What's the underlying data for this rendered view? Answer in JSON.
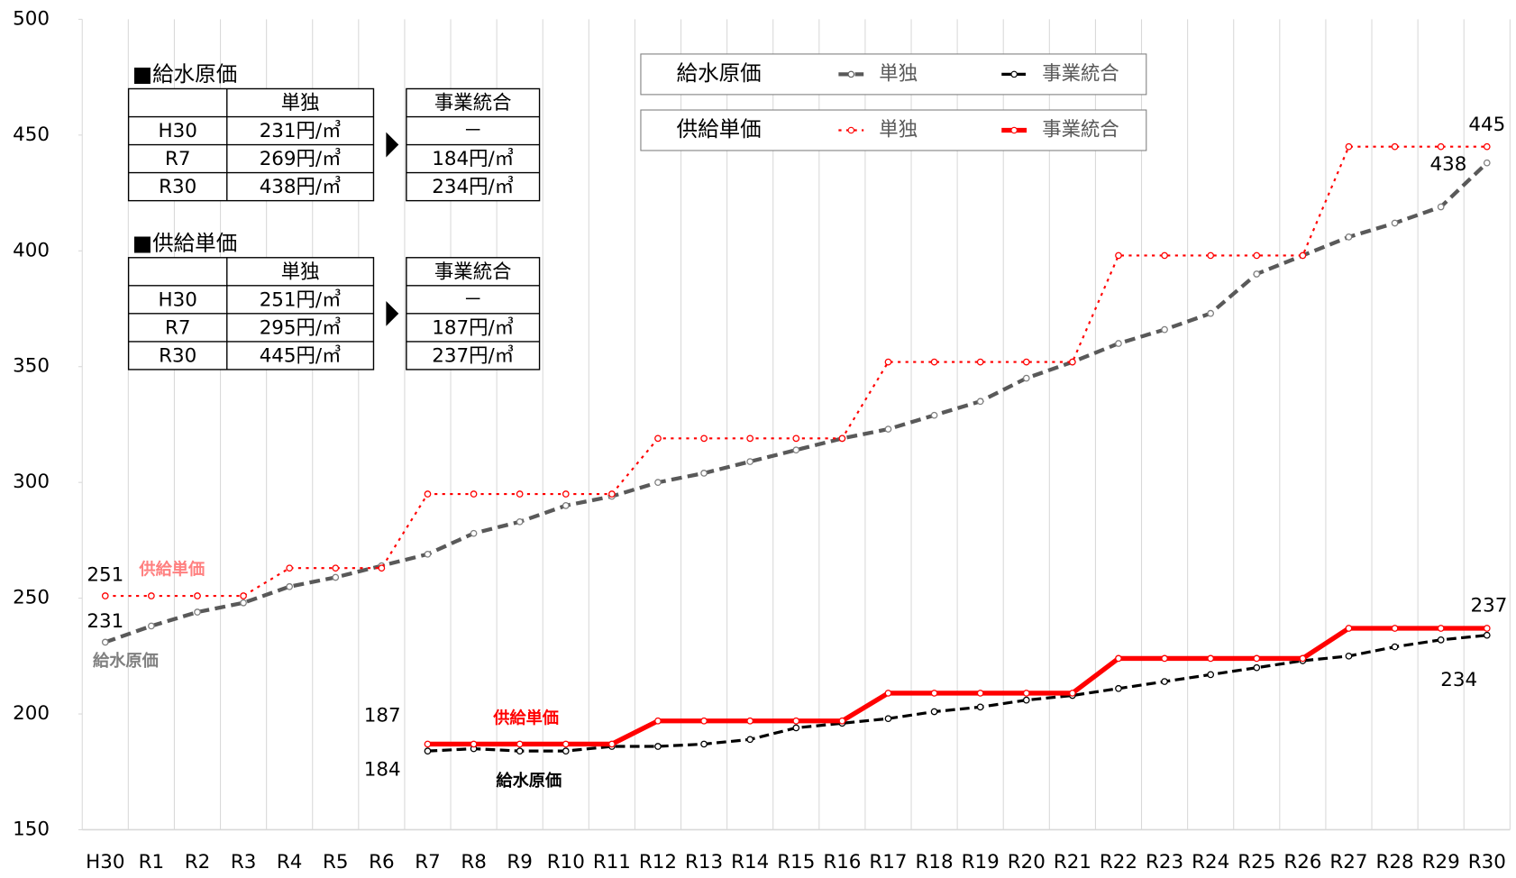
{
  "chart_data": {
    "type": "line",
    "categories": [
      "H30",
      "R1",
      "R2",
      "R3",
      "R4",
      "R5",
      "R6",
      "R7",
      "R8",
      "R9",
      "R10",
      "R11",
      "R12",
      "R13",
      "R14",
      "R15",
      "R16",
      "R17",
      "R18",
      "R19",
      "R20",
      "R21",
      "R22",
      "R23",
      "R24",
      "R25",
      "R26",
      "R27",
      "R28",
      "R29",
      "R30"
    ],
    "ylim": [
      150,
      500
    ],
    "yticks": [
      150,
      200,
      250,
      300,
      350,
      400,
      450,
      500
    ],
    "legend_titles": [
      "給水原価",
      "供給単価"
    ],
    "series": [
      {
        "name": "単独",
        "color": "#595959",
        "values": [
          231,
          238,
          244,
          248,
          255,
          259,
          264,
          269,
          278,
          283,
          290,
          294,
          300,
          304,
          309,
          314,
          319,
          323,
          329,
          335,
          345,
          352,
          360,
          366,
          373,
          390,
          398,
          406,
          412,
          419,
          438
        ],
        "value_labels": [
          "231",
          null,
          null,
          null,
          null,
          null,
          null,
          null,
          null,
          null,
          null,
          null,
          null,
          null,
          null,
          null,
          null,
          null,
          null,
          null,
          null,
          null,
          null,
          null,
          null,
          null,
          null,
          null,
          null,
          null,
          "438"
        ]
      },
      {
        "name": "事業統合",
        "color": "#000000",
        "values": [
          null,
          null,
          null,
          null,
          null,
          null,
          null,
          184,
          185,
          184,
          184,
          186,
          186,
          187,
          189,
          194,
          196,
          198,
          201,
          203,
          206,
          208,
          211,
          214,
          217,
          220,
          223,
          225,
          229,
          232,
          234
        ],
        "value_labels": [
          null,
          null,
          null,
          null,
          null,
          null,
          null,
          "184",
          null,
          null,
          null,
          null,
          null,
          null,
          null,
          null,
          null,
          null,
          null,
          null,
          null,
          null,
          null,
          null,
          null,
          null,
          null,
          null,
          null,
          null,
          "234"
        ]
      },
      {
        "name": "単独",
        "color": "#ff0000",
        "values": [
          251,
          251,
          251,
          251,
          263,
          263,
          263,
          295,
          295,
          295,
          295,
          295,
          319,
          319,
          319,
          319,
          319,
          352,
          352,
          352,
          352,
          352,
          398,
          398,
          398,
          398,
          398,
          445,
          445,
          445,
          445
        ],
        "value_labels": [
          "251",
          null,
          null,
          null,
          null,
          null,
          null,
          null,
          null,
          null,
          null,
          null,
          null,
          null,
          null,
          null,
          null,
          null,
          null,
          null,
          null,
          null,
          null,
          null,
          null,
          null,
          null,
          null,
          null,
          null,
          "445"
        ]
      },
      {
        "name": "事業統合",
        "color": "#ff0000",
        "values": [
          null,
          null,
          null,
          null,
          null,
          null,
          null,
          187,
          187,
          187,
          187,
          187,
          197,
          197,
          197,
          197,
          197,
          209,
          209,
          209,
          209,
          209,
          224,
          224,
          224,
          224,
          224,
          237,
          237,
          237,
          237
        ],
        "value_labels": [
          null,
          null,
          null,
          null,
          null,
          null,
          null,
          "187",
          null,
          null,
          null,
          null,
          null,
          null,
          null,
          null,
          null,
          null,
          null,
          null,
          null,
          null,
          null,
          null,
          null,
          null,
          null,
          null,
          null,
          null,
          "237"
        ]
      }
    ],
    "annotations": [
      "供給単価",
      "給水原価",
      "供給単価",
      "給水原価"
    ],
    "tables": [
      {
        "title": "■給水原価",
        "header": [
          "単独",
          "事業統合"
        ],
        "rows": [
          [
            "H30",
            "231円/㎥",
            "－"
          ],
          [
            "R7",
            "269円/㎥",
            "184円/㎥"
          ],
          [
            "R30",
            "438円/㎥",
            "234円/㎥"
          ]
        ]
      },
      {
        "title": "■供給単価",
        "header": [
          "単独",
          "事業統合"
        ],
        "rows": [
          [
            "H30",
            "251円/㎥",
            "－"
          ],
          [
            "R7",
            "295円/㎥",
            "187円/㎥"
          ],
          [
            "R30",
            "445円/㎥",
            "237円/㎥"
          ]
        ]
      }
    ]
  }
}
